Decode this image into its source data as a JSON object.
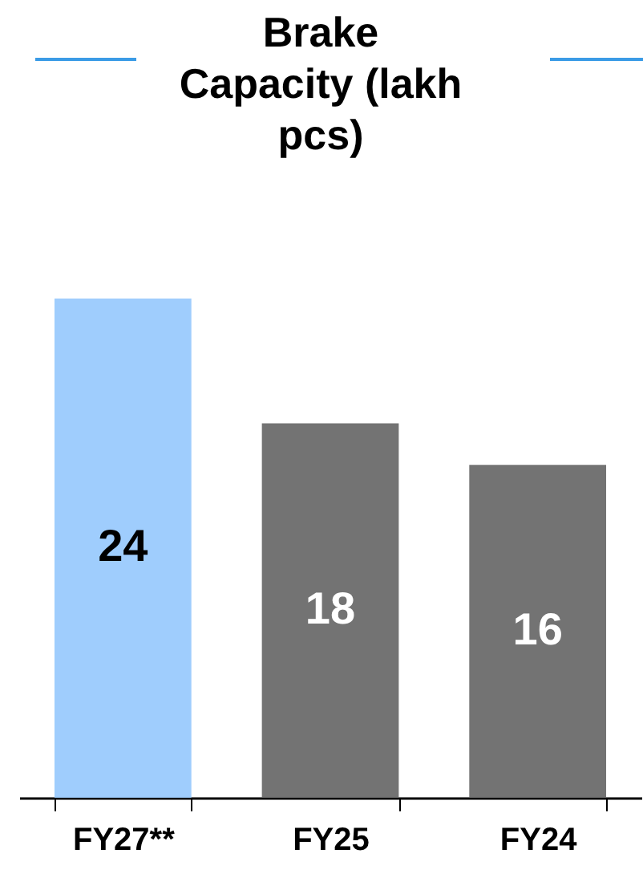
{
  "chart_data": {
    "type": "bar",
    "title": "Brake Capacity (lakh pcs)",
    "categories": [
      "FY27**",
      "FY25",
      "FY24"
    ],
    "values": [
      24,
      18,
      16
    ],
    "colors": [
      "#9fcdfd",
      "#737373",
      "#737373"
    ],
    "data_labels": true
  }
}
